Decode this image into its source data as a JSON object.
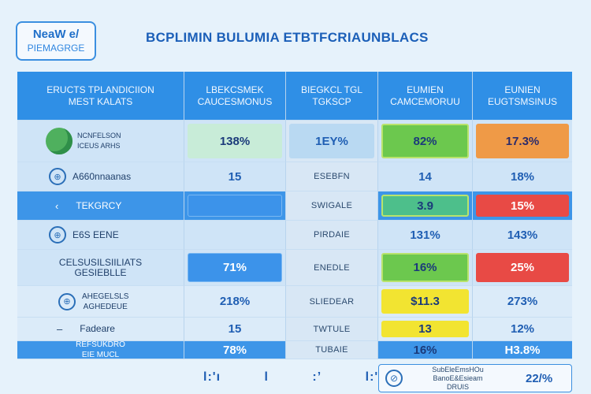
{
  "logo": {
    "line1": "NeaW e/",
    "line2": "PIEMAGRGE"
  },
  "title": "BCPLIMIN BULUMIA ETBTFCRIAUNBLACS",
  "columns": [
    "ERUCTS TPLANDICIION\nMEST KALATS",
    "LBEKCSMEK\nCAUCESMONUS",
    "BIEGKCL TGL\nTGKSCP",
    "EUMIEN\nCAMCEMORUU",
    "EUNIEN\nEUGTSMSINUS"
  ],
  "rows": [
    {
      "label": "NCNFELSON\nICEUS ARHS",
      "c1": "138%",
      "c2": "1EY%",
      "c3": "82%",
      "c4": "17.3%"
    },
    {
      "label": "A660nnaanas",
      "c1": "15",
      "c2": "ESEBFN",
      "c3": "14",
      "c4": "18%"
    },
    {
      "label": "TEKGRCY",
      "c1": "",
      "c2": "SWIGALE",
      "c3": "3.9",
      "c4": "15%"
    },
    {
      "label": "E6S EENE",
      "c1": "",
      "c2": "PIRDAIE",
      "c3": "131%",
      "c4": "143%"
    },
    {
      "label": "CELSUSILSIILIATS\nGESIEBLLE",
      "c1": "71%",
      "c2": "ENEDLE",
      "c3": "16%",
      "c4": "25%"
    },
    {
      "label": "AHEGELSLS\nAGHEDEUE",
      "c1": "218%",
      "c2": "SLIEDEAR",
      "c3": "$11.3",
      "c4": "273%"
    },
    {
      "label": "Fadeare",
      "c1": "15",
      "c2": "TWTULE",
      "c3": "13",
      "c4": "12%"
    },
    {
      "label": "REFSUKDRO\nEIE MUCL",
      "c1": "78%",
      "c2": "TUBAIE",
      "c3": "16%",
      "c4": "H3.8%"
    }
  ],
  "footer": {
    "marks": [
      "l:'ı",
      "l",
      ":’",
      "l:'l:"
    ],
    "note": "SubEleEmsHOu BanoE&Esieam\nDRUIS",
    "value": "22/%"
  }
}
